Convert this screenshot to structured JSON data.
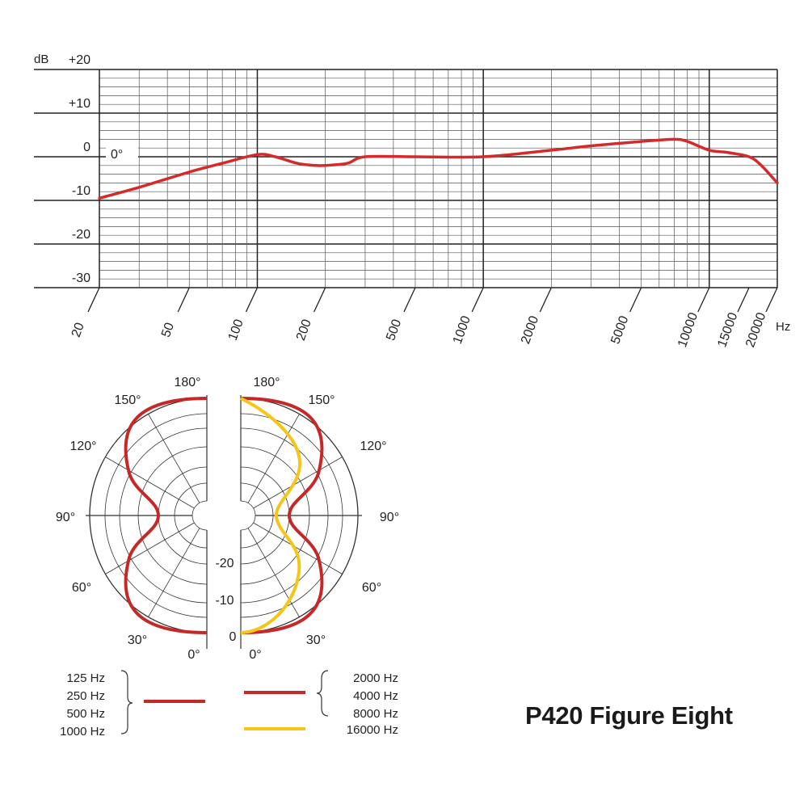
{
  "title": "P420 Figure Eight",
  "chart_data": [
    {
      "type": "line",
      "name": "frequency-response",
      "y_unit": "dB",
      "x_unit": "Hz",
      "x_scale": "log",
      "xlim": [
        20,
        20000
      ],
      "ylim": [
        -30,
        20
      ],
      "y_ticks": [
        {
          "value": 20,
          "label": "+20"
        },
        {
          "value": 10,
          "label": "+10"
        },
        {
          "value": 0,
          "label": "0"
        },
        {
          "value": -10,
          "label": "-10"
        },
        {
          "value": -20,
          "label": "-20"
        },
        {
          "value": -30,
          "label": "-30"
        }
      ],
      "x_ticks": [
        20,
        50,
        100,
        200,
        500,
        1000,
        2000,
        5000,
        10000,
        15000,
        20000
      ],
      "x_tick_labels": [
        "20",
        "50",
        "100",
        "200",
        "500",
        "1000",
        "2000",
        "5000",
        "10000",
        "15000",
        "20000"
      ],
      "annotation": "0°",
      "grid": true,
      "color": "#d42a2a",
      "series": [
        {
          "x": [
            20,
            30,
            50,
            70,
            100,
            120,
            150,
            180,
            200,
            250,
            300,
            500,
            1000,
            2000,
            3000,
            5000,
            7000,
            8000,
            10000,
            12000,
            15000,
            17000,
            20000
          ],
          "y": [
            -9.5,
            -7,
            -3.5,
            -1.5,
            0.5,
            0,
            -1.5,
            -2,
            -2,
            -1.5,
            0,
            0,
            0,
            1.5,
            2.5,
            3.5,
            4,
            3.5,
            1.5,
            1,
            0,
            -2,
            -6
          ]
        }
      ]
    },
    {
      "type": "polar",
      "name": "polar-pattern",
      "angle_labels": [
        "180°",
        "150°",
        "120°",
        "90°",
        "60°",
        "30°",
        "0°"
      ],
      "radial_labels": [
        "-20",
        "-10",
        "0"
      ],
      "series": [
        {
          "legend": [
            "125 Hz",
            "250 Hz",
            "500 Hz",
            "1000 Hz"
          ],
          "color": "#c62828",
          "side": "left"
        },
        {
          "legend": [
            "2000 Hz",
            "4000 Hz",
            "8000 Hz"
          ],
          "color": "#c62828",
          "side": "right"
        },
        {
          "legend": [
            "16000 Hz"
          ],
          "color": "#f5c518",
          "side": "right"
        }
      ]
    }
  ]
}
